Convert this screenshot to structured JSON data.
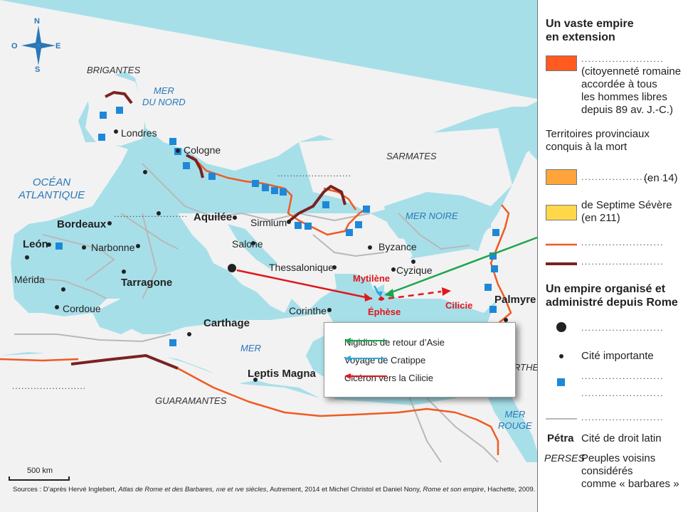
{
  "compass": {
    "n": "N",
    "s": "S",
    "e": "E",
    "o": "O"
  },
  "places": {
    "londres": "Londres",
    "cologne": "Cologne",
    "bordeaux": "Bordeaux",
    "aquilee": "Aquilée",
    "sirmium": "Sirmium",
    "leon": "León",
    "narbonne": "Narbonne",
    "salone": "Salone",
    "byzance": "Byzance",
    "merida": "Mérida",
    "tarragone": "Tarragone",
    "thessalonique": "Thessalonique",
    "cyzique": "Cyzique",
    "cordoue": "Cordoue",
    "corinthe": "Corinthe",
    "palmyre": "Palmyre",
    "carthage": "Carthage",
    "leptis": "Leptis Magna"
  },
  "seas": {
    "nord": "MER\nDU NORD",
    "atlantique": "OCÉAN\nATLANTIQUE",
    "noire": "MER NOIRE",
    "med": "MER",
    "rouge": "MER\nROUGE"
  },
  "peoples": {
    "brigantes": "BRIGANTES",
    "sarmates": "SARMATES",
    "guaramantes": "GUARAMANTES",
    "perses_partial": "RTHES"
  },
  "annotations": {
    "mytilene": "Mytilène",
    "ephese": "Éphèse",
    "cilicie": "Cilicie"
  },
  "dotted_placeholder": "........................",
  "inset": {
    "nigidius": "Nigidius de retour  d’Asie",
    "cratippe": "Voyage de Cratippe",
    "ciceron": "Cicéron vers la Cilicie"
  },
  "colors": {
    "sea": "#a7dfe9",
    "land": "#f2f2f2",
    "border_white": "#ffffff",
    "red_route": "#e0171d",
    "green_route": "#1aa64a",
    "blue_route": "#2fa8e0",
    "orange_line": "#f05a22",
    "brown_line": "#7a2222",
    "square_blue": "#1e88d8",
    "swatch_red": "#ff5a1f",
    "swatch_orange": "#ffa43a",
    "swatch_yellow": "#ffd84a"
  },
  "scale": {
    "label": "500 km"
  },
  "sources": {
    "prefix": "Sources : D’après Hervé Inglebert, ",
    "atlas": "Atlas de Rome et des Barbares, ",
    "centuries": "ıııe et ıve siècles",
    "mid": ", Autrement, 2014 et Michel Christol et Daniel Nony, ",
    "book": "Rome et son empire",
    "suffix": ", Hachette, 2009."
  },
  "legend": {
    "h1": "Un vaste empire\nen extension",
    "t1": "(citoyenneté romaine\naccordée à tous\nles hommes libres\ndepuis 89 av. J.-C.)",
    "t2": "Territoires provinciaux\nconquis à la mort",
    "t3": "(en 14)",
    "t4": "de Septime Sévère\n(en 211)",
    "h2": "Un empire organisé et\nadministré depuis Rome",
    "t5": "Cité importante",
    "petra": "Pétra",
    "t6": "Cité de droit latin",
    "perses": "PERSES",
    "t7": "Peuples voisins\nconsidérés\ncomme « barbares »"
  }
}
